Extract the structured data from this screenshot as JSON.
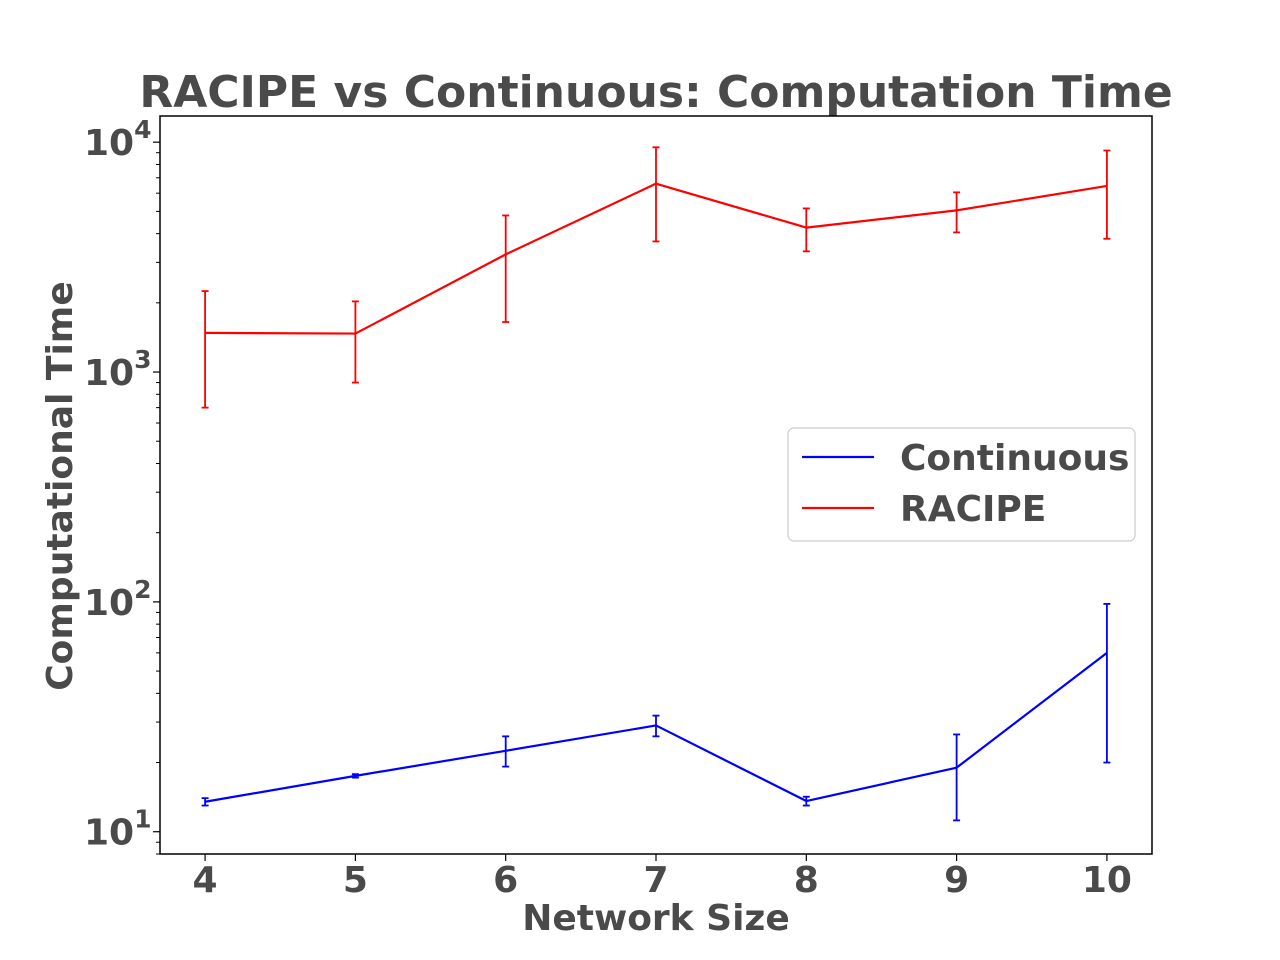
{
  "chart_data": {
    "type": "line",
    "title": "RACIPE vs Continuous: Computation Time",
    "xlabel": "Network Size",
    "ylabel": "Computational Time",
    "yscale": "log",
    "xlim": [
      3.7,
      10.3
    ],
    "ylim": [
      8,
      13000
    ],
    "x": [
      4,
      5,
      6,
      7,
      8,
      9,
      10
    ],
    "x_tick_labels": [
      "4",
      "5",
      "6",
      "7",
      "8",
      "9",
      "10"
    ],
    "y_ticks": [
      {
        "value": 10,
        "base": "10",
        "exp": "1"
      },
      {
        "value": 100,
        "base": "10",
        "exp": "2"
      },
      {
        "value": 1000,
        "base": "10",
        "exp": "3"
      },
      {
        "value": 10000,
        "base": "10",
        "exp": "4"
      }
    ],
    "grid": false,
    "legend_position": "center-right",
    "series": [
      {
        "name": "Continuous",
        "color": "#0000ff",
        "values": [
          13.5,
          17.5,
          22.5,
          29,
          13.6,
          19,
          60
        ],
        "err_low": [
          13,
          17.2,
          19.2,
          26,
          13,
          11.2,
          20
        ],
        "err_high": [
          14,
          17.8,
          26,
          32,
          14.2,
          26.5,
          98
        ]
      },
      {
        "name": "RACIPE",
        "color": "#ff0000",
        "values": [
          1480,
          1470,
          3250,
          6600,
          4250,
          5050,
          6450
        ],
        "err_low": [
          700,
          900,
          1650,
          3700,
          3350,
          4050,
          3800
        ],
        "err_high": [
          2250,
          2030,
          4800,
          9500,
          5150,
          6050,
          9200
        ]
      }
    ]
  }
}
